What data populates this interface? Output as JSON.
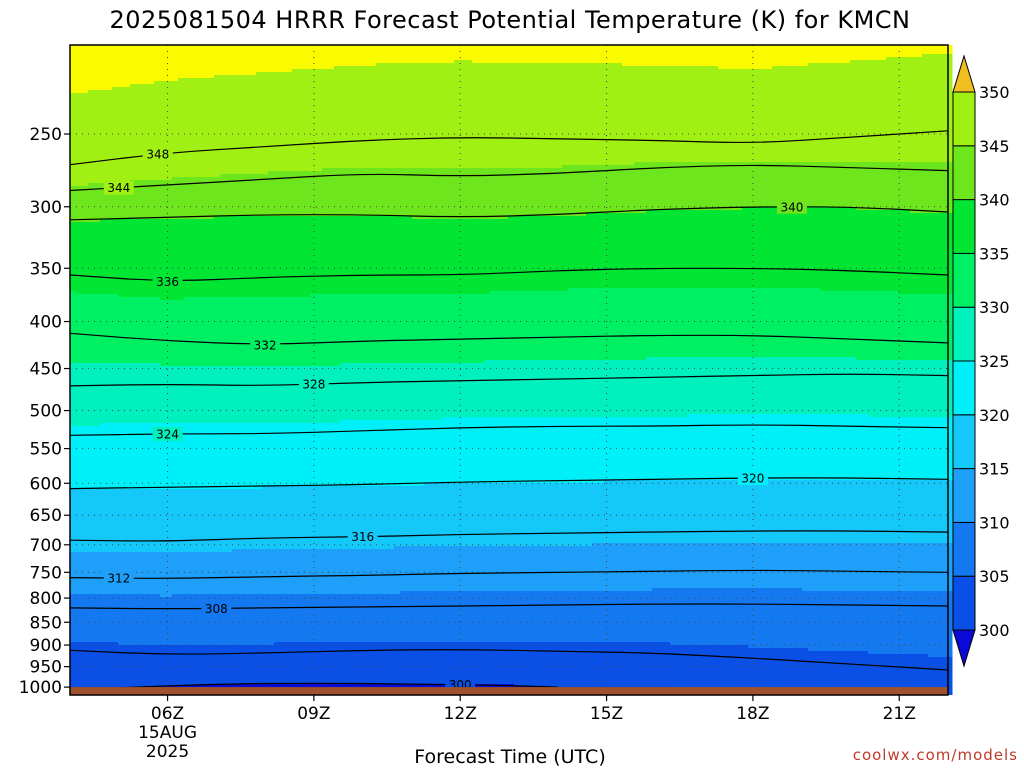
{
  "colors": {
    "levels": [
      {
        "lo": 295,
        "hi": 300,
        "color": "#0a0ad8"
      },
      {
        "lo": 300,
        "hi": 305,
        "color": "#0a50e6"
      },
      {
        "lo": 305,
        "hi": 310,
        "color": "#1478f0"
      },
      {
        "lo": 310,
        "hi": 315,
        "color": "#1ea0fa"
      },
      {
        "lo": 315,
        "hi": 320,
        "color": "#14c8fa"
      },
      {
        "lo": 320,
        "hi": 325,
        "color": "#00f0fa"
      },
      {
        "lo": 325,
        "hi": 330,
        "color": "#00f0be"
      },
      {
        "lo": 330,
        "hi": 335,
        "color": "#00f064"
      },
      {
        "lo": 335,
        "hi": 340,
        "color": "#00e632"
      },
      {
        "lo": 340,
        "hi": 345,
        "color": "#6ee61e"
      },
      {
        "lo": 345,
        "hi": 350,
        "color": "#a0f014"
      },
      {
        "lo": 350,
        "hi": 355,
        "color": "#fafa00"
      },
      {
        "lo": 355,
        "hi": 360,
        "color": "#f0be1e"
      }
    ],
    "ground": "#a0522d",
    "credit": "#c0392b"
  },
  "chart_data": {
    "type": "heatmap",
    "title": "2025081504 HRRR Forecast Potential Temperature (K) for KMCN",
    "xlabel": "Forecast Time (UTC)",
    "ylabel": "",
    "x_ticks": [
      {
        "hour": 6,
        "label": "06Z",
        "sub": [
          "15AUG",
          "2025"
        ]
      },
      {
        "hour": 9,
        "label": "09Z"
      },
      {
        "hour": 12,
        "label": "12Z"
      },
      {
        "hour": 15,
        "label": "15Z"
      },
      {
        "hour": 18,
        "label": "18Z"
      },
      {
        "hour": 21,
        "label": "21Z"
      }
    ],
    "xlim": [
      4,
      22
    ],
    "y_scale": "log",
    "ylim_hpa": [
      1020,
      200
    ],
    "y_ticks": [
      250,
      300,
      350,
      400,
      450,
      500,
      550,
      600,
      650,
      700,
      750,
      800,
      850,
      900,
      950,
      1000
    ],
    "surface_hpa": 1000,
    "colorbar": {
      "ticks": [
        300,
        305,
        310,
        315,
        320,
        325,
        330,
        335,
        340,
        345,
        350
      ],
      "extend": "both"
    },
    "contour_interval": 4,
    "contours": [
      {
        "value": 348,
        "label_hour": 5.8,
        "points": [
          [
            4,
            270
          ],
          [
            6,
            262
          ],
          [
            8,
            258
          ],
          [
            10,
            254
          ],
          [
            12,
            252
          ],
          [
            14,
            253
          ],
          [
            16,
            254
          ],
          [
            18,
            256
          ],
          [
            20,
            252
          ],
          [
            22,
            248
          ]
        ]
      },
      {
        "value": 344,
        "label_hour": 5.0,
        "points": [
          [
            4,
            288
          ],
          [
            6,
            284
          ],
          [
            8,
            280
          ],
          [
            10,
            276
          ],
          [
            12,
            278
          ],
          [
            14,
            276
          ],
          [
            16,
            272
          ],
          [
            18,
            270
          ],
          [
            20,
            272
          ],
          [
            22,
            274
          ]
        ]
      },
      {
        "value": 340,
        "label_hour": 18.8,
        "points": [
          [
            4,
            310
          ],
          [
            6,
            308
          ],
          [
            8,
            306
          ],
          [
            10,
            306
          ],
          [
            12,
            308
          ],
          [
            14,
            306
          ],
          [
            16,
            302
          ],
          [
            18,
            300
          ],
          [
            20,
            300
          ],
          [
            22,
            304
          ]
        ]
      },
      {
        "value": 336,
        "label_hour": 6.0,
        "points": [
          [
            4,
            356
          ],
          [
            6,
            362
          ],
          [
            8,
            358
          ],
          [
            10,
            356
          ],
          [
            12,
            356
          ],
          [
            14,
            352
          ],
          [
            16,
            350
          ],
          [
            18,
            350
          ],
          [
            20,
            352
          ],
          [
            22,
            356
          ]
        ]
      },
      {
        "value": 332,
        "label_hour": 8.0,
        "points": [
          [
            4,
            412
          ],
          [
            6,
            420
          ],
          [
            8,
            424
          ],
          [
            10,
            420
          ],
          [
            12,
            418
          ],
          [
            14,
            416
          ],
          [
            16,
            414
          ],
          [
            18,
            414
          ],
          [
            20,
            418
          ],
          [
            22,
            422
          ]
        ]
      },
      {
        "value": 328,
        "label_hour": 9.0,
        "points": [
          [
            4,
            470
          ],
          [
            6,
            468
          ],
          [
            8,
            470
          ],
          [
            10,
            466
          ],
          [
            12,
            464
          ],
          [
            14,
            462
          ],
          [
            16,
            460
          ],
          [
            18,
            458
          ],
          [
            20,
            456
          ],
          [
            22,
            458
          ]
        ]
      },
      {
        "value": 324,
        "label_hour": 6.0,
        "points": [
          [
            4,
            532
          ],
          [
            6,
            530
          ],
          [
            8,
            530
          ],
          [
            10,
            526
          ],
          [
            12,
            522
          ],
          [
            14,
            520
          ],
          [
            16,
            520
          ],
          [
            18,
            518
          ],
          [
            20,
            520
          ],
          [
            22,
            522
          ]
        ]
      },
      {
        "value": 320,
        "label_hour": 18.0,
        "points": [
          [
            4,
            608
          ],
          [
            6,
            606
          ],
          [
            8,
            604
          ],
          [
            10,
            602
          ],
          [
            12,
            598
          ],
          [
            14,
            596
          ],
          [
            16,
            594
          ],
          [
            18,
            592
          ],
          [
            20,
            592
          ],
          [
            22,
            594
          ]
        ]
      },
      {
        "value": 316,
        "label_hour": 10.0,
        "points": [
          [
            4,
            692
          ],
          [
            6,
            694
          ],
          [
            8,
            688
          ],
          [
            10,
            686
          ],
          [
            12,
            682
          ],
          [
            14,
            680
          ],
          [
            16,
            678
          ],
          [
            18,
            676
          ],
          [
            20,
            676
          ],
          [
            22,
            678
          ]
        ]
      },
      {
        "value": 312,
        "label_hour": 5.0,
        "points": [
          [
            4,
            760
          ],
          [
            6,
            762
          ],
          [
            8,
            758
          ],
          [
            10,
            756
          ],
          [
            12,
            752
          ],
          [
            14,
            750
          ],
          [
            16,
            748
          ],
          [
            18,
            746
          ],
          [
            20,
            748
          ],
          [
            22,
            750
          ]
        ]
      },
      {
        "value": 308,
        "label_hour": 7.0,
        "points": [
          [
            4,
            820
          ],
          [
            6,
            822
          ],
          [
            8,
            820
          ],
          [
            10,
            818
          ],
          [
            12,
            816
          ],
          [
            14,
            814
          ],
          [
            16,
            812
          ],
          [
            18,
            812
          ],
          [
            20,
            814
          ],
          [
            22,
            816
          ]
        ]
      },
      {
        "value": 304,
        "label_hour": null,
        "points": [
          [
            4,
            912
          ],
          [
            6,
            922
          ],
          [
            8,
            918
          ],
          [
            10,
            912
          ],
          [
            12,
            910
          ],
          [
            14,
            914
          ],
          [
            16,
            918
          ],
          [
            18,
            930
          ],
          [
            20,
            944
          ],
          [
            22,
            958
          ]
        ]
      },
      {
        "value": 300,
        "label_hour": 12.0,
        "points": [
          [
            5,
            1002
          ],
          [
            7,
            992
          ],
          [
            9,
            990
          ],
          [
            11,
            992
          ],
          [
            13,
            996
          ],
          [
            14,
            1000
          ]
        ]
      }
    ]
  },
  "credit": "coolwx.com/models"
}
